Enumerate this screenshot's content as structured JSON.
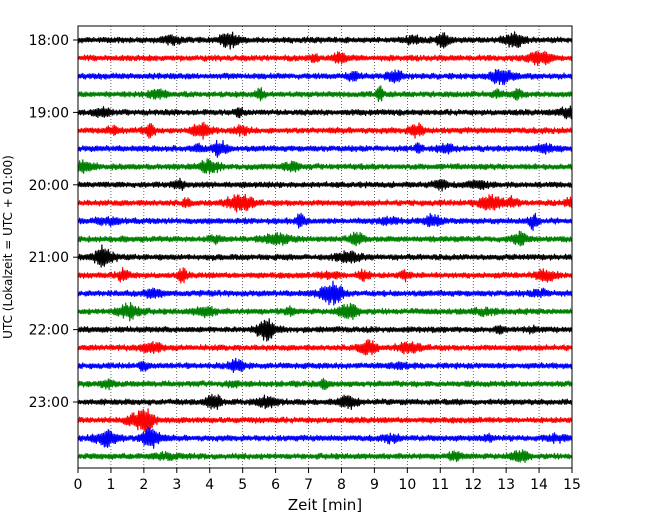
{
  "chart_data": {
    "type": "line",
    "title": "",
    "xlabel": "Zeit  [min]",
    "ylabel": "UTC (Lokalzeit = UTC + 01:00)",
    "xlim": [
      0,
      15
    ],
    "x_ticks": [
      0,
      1,
      2,
      3,
      4,
      5,
      6,
      7,
      8,
      9,
      10,
      11,
      12,
      13,
      14,
      15
    ],
    "x_tick_labels": [
      "0",
      "1",
      "2",
      "3",
      "4",
      "5",
      "6",
      "7",
      "8",
      "9",
      "10",
      "11",
      "12",
      "13",
      "14",
      "15"
    ],
    "y_tick_labels": [
      "18:00",
      "19:00",
      "20:00",
      "21:00",
      "22:00",
      "23:00"
    ],
    "grid": "vertical dotted",
    "trace_colors": [
      "#000000",
      "#ff0000",
      "#0000ff",
      "#008000"
    ],
    "traces_per_hour": 4,
    "minutes_per_trace": 15,
    "traces": [
      {
        "start": "18:00",
        "color": "#000000"
      },
      {
        "start": "18:15",
        "color": "#ff0000"
      },
      {
        "start": "18:30",
        "color": "#0000ff"
      },
      {
        "start": "18:45",
        "color": "#008000"
      },
      {
        "start": "19:00",
        "color": "#000000"
      },
      {
        "start": "19:15",
        "color": "#ff0000"
      },
      {
        "start": "19:30",
        "color": "#0000ff"
      },
      {
        "start": "19:45",
        "color": "#008000"
      },
      {
        "start": "20:00",
        "color": "#000000"
      },
      {
        "start": "20:15",
        "color": "#ff0000"
      },
      {
        "start": "20:30",
        "color": "#0000ff"
      },
      {
        "start": "20:45",
        "color": "#008000"
      },
      {
        "start": "21:00",
        "color": "#000000"
      },
      {
        "start": "21:15",
        "color": "#ff0000"
      },
      {
        "start": "21:30",
        "color": "#0000ff"
      },
      {
        "start": "21:45",
        "color": "#008000"
      },
      {
        "start": "22:00",
        "color": "#000000"
      },
      {
        "start": "22:15",
        "color": "#ff0000"
      },
      {
        "start": "22:30",
        "color": "#0000ff"
      },
      {
        "start": "22:45",
        "color": "#008000"
      },
      {
        "start": "23:00",
        "color": "#000000"
      },
      {
        "start": "23:15",
        "color": "#ff0000"
      },
      {
        "start": "23:30",
        "color": "#0000ff"
      },
      {
        "start": "23:45",
        "color": "#008000"
      }
    ]
  }
}
